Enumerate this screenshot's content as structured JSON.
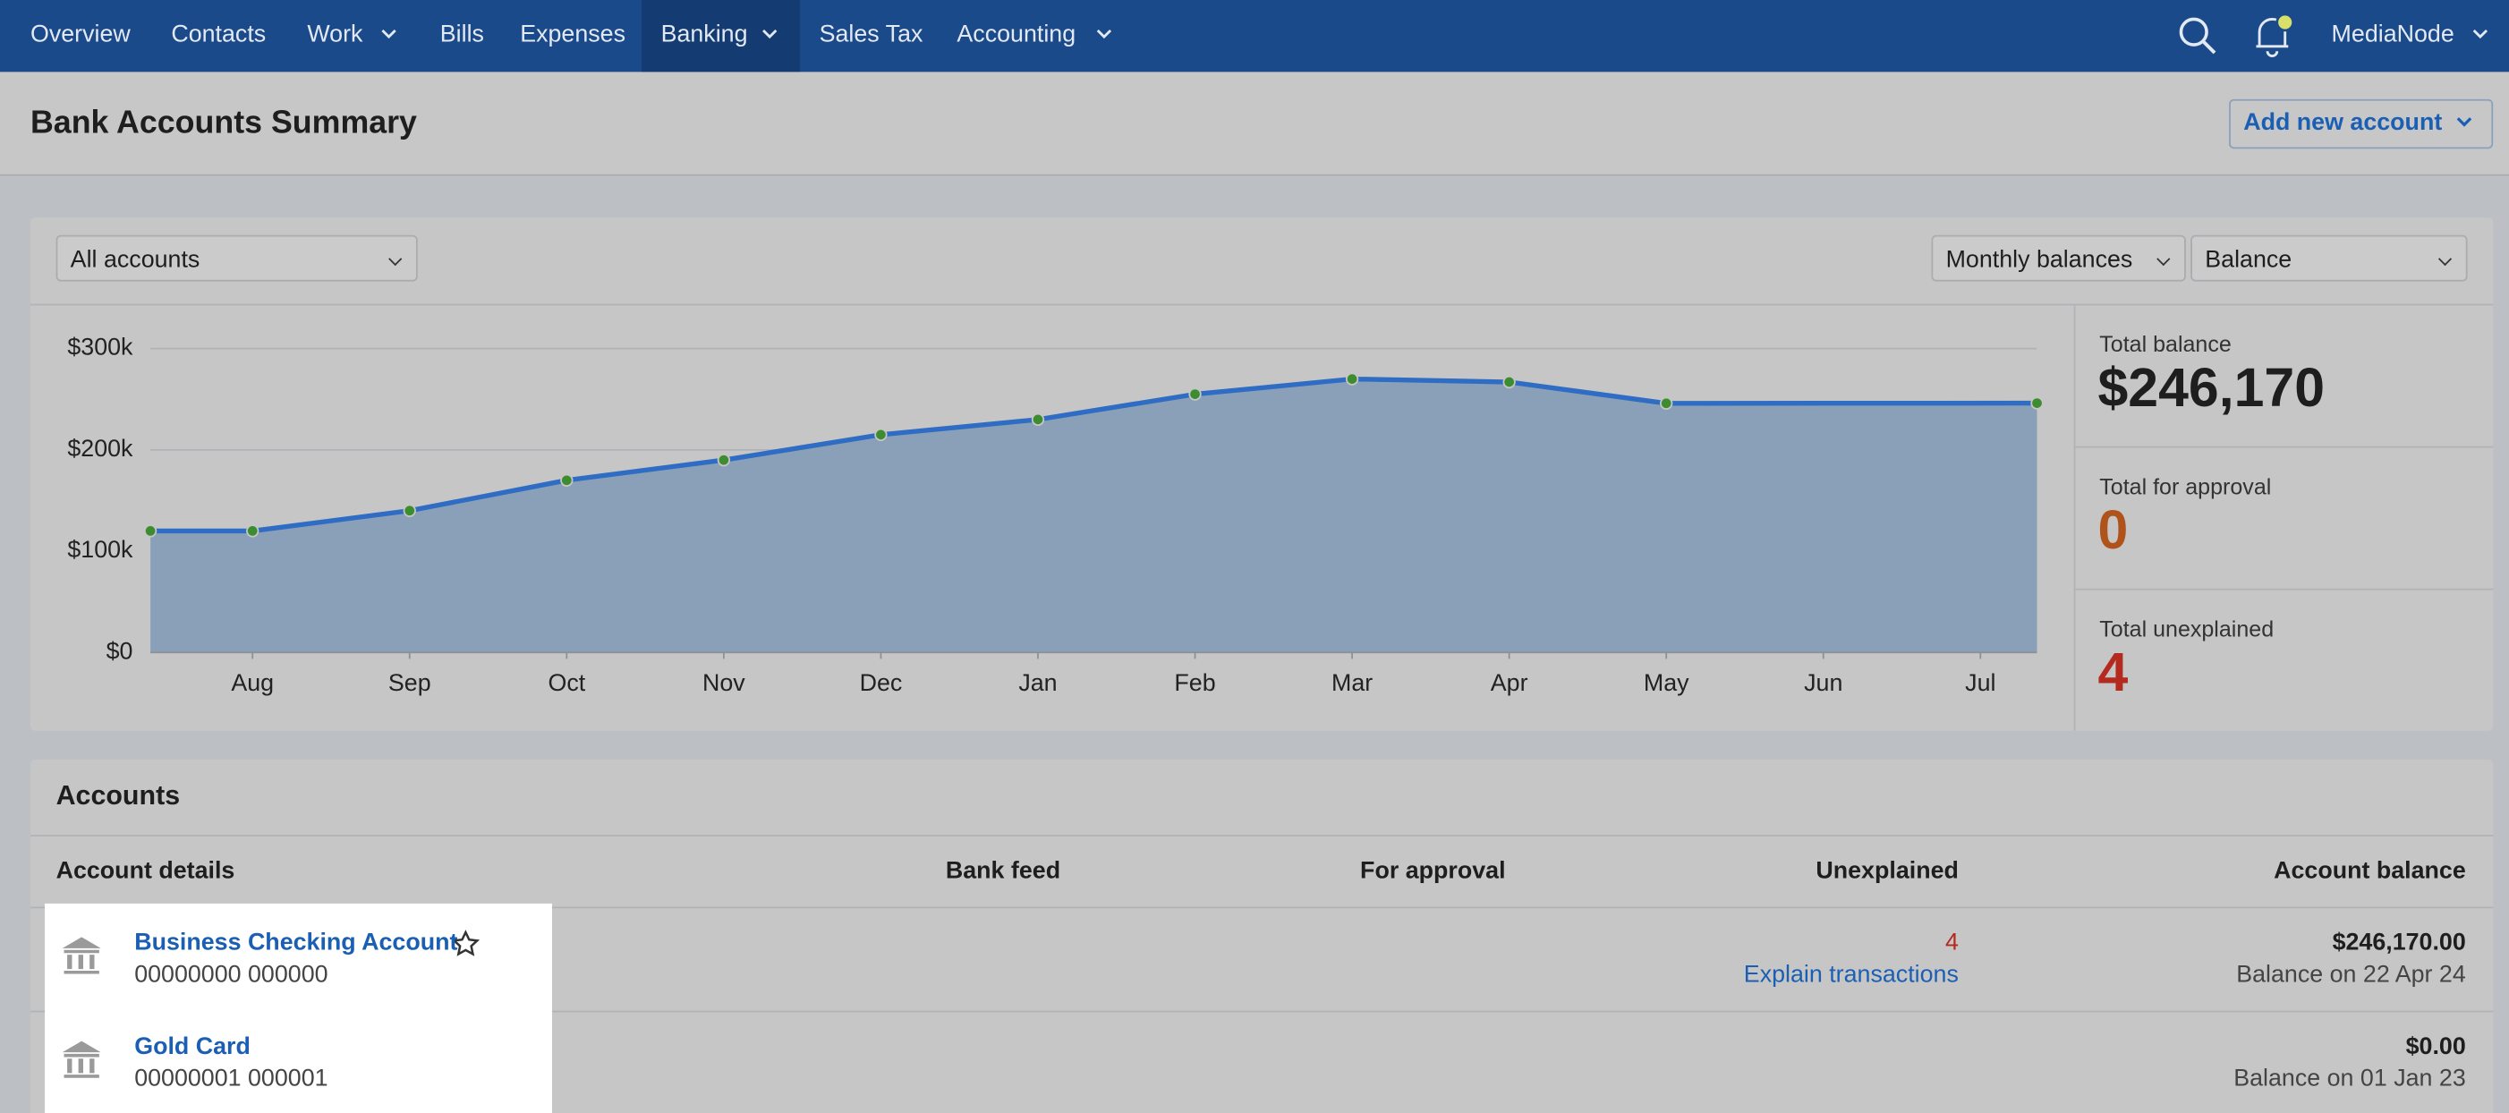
{
  "nav": {
    "items": [
      "Overview",
      "Contacts",
      "Work",
      "Bills",
      "Expenses",
      "Banking",
      "Sales Tax",
      "Accounting"
    ],
    "user": "MediaNode"
  },
  "header": {
    "title": "Bank Accounts Summary",
    "button": "Add new account"
  },
  "filters": {
    "account": "All accounts",
    "period": "Monthly balances",
    "measure": "Balance"
  },
  "chart": {
    "type": "line",
    "x": [
      0.35,
      1,
      2,
      3,
      4,
      5,
      6,
      7,
      8,
      9,
      10,
      12.36
    ],
    "values": [
      120000,
      120000,
      140000,
      170000,
      190000,
      215000,
      230000,
      255000,
      270000,
      267000,
      246000,
      246170
    ],
    "xlim": [
      0.35,
      12.36
    ],
    "xticks": [
      {
        "value": 1,
        "label": "Aug"
      },
      {
        "value": 2,
        "label": "Sep"
      },
      {
        "value": 3,
        "label": "Oct"
      },
      {
        "value": 4,
        "label": "Nov"
      },
      {
        "value": 5,
        "label": "Dec"
      },
      {
        "value": 6,
        "label": "Jan"
      },
      {
        "value": 7,
        "label": "Feb"
      },
      {
        "value": 8,
        "label": "Mar"
      },
      {
        "value": 9,
        "label": "Apr"
      },
      {
        "value": 10,
        "label": "May"
      },
      {
        "value": 11,
        "label": "Jun"
      },
      {
        "value": 12,
        "label": "Jul"
      }
    ],
    "ylim": [
      0,
      300000
    ],
    "yticks": [
      {
        "value": 0,
        "label": "$0"
      },
      {
        "value": 100000,
        "label": "$100k"
      },
      {
        "value": 200000,
        "label": "$200k"
      },
      {
        "value": 300000,
        "label": "$300k"
      }
    ],
    "color": "#2f6cc4",
    "area_color": "#8aa0b8",
    "marker_color": "#3d8c2f",
    "grid": true
  },
  "summary": [
    {
      "label": "Total balance",
      "value": "$246,170"
    },
    {
      "label": "Total for approval",
      "value": "0"
    },
    {
      "label": "Total unexplained",
      "value": "4"
    }
  ],
  "accounts": {
    "title": "Accounts",
    "columns": [
      "Account details",
      "Bank feed",
      "For approval",
      "Unexplained",
      "Account balance"
    ],
    "rows": [
      {
        "name": "Business Checking Account",
        "number": "00000000 000000",
        "unexplained": "4",
        "action": "Explain transactions",
        "balance": "$246,170.00",
        "balance_date": "Balance on 22 Apr 24"
      },
      {
        "name": "Gold Card",
        "number": "00000001 000001",
        "balance": "$0.00",
        "balance_date": "Balance on 01 Jan 23"
      }
    ]
  }
}
